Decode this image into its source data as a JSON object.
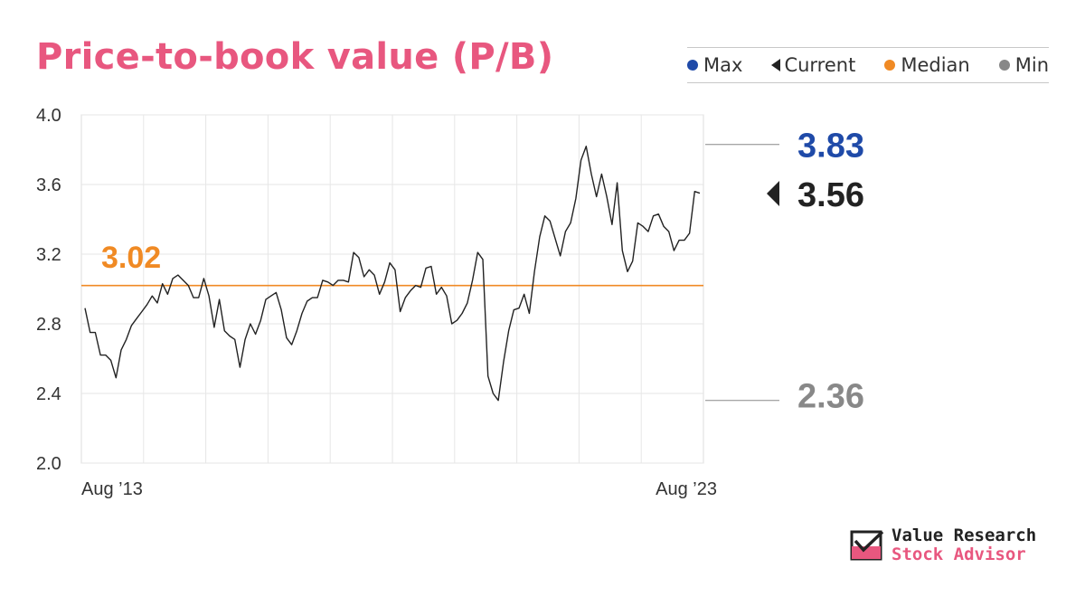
{
  "title": "Price-to-book value (P/B)",
  "legend": {
    "max": {
      "label": "Max",
      "color": "#1f4aa8"
    },
    "current": {
      "label": "Current",
      "color": "#222222"
    },
    "median": {
      "label": "Median",
      "color": "#f08a24"
    },
    "min": {
      "label": "Min",
      "color": "#888888"
    }
  },
  "chart_data": {
    "type": "line",
    "title": "Price-to-book value (P/B)",
    "ylim": [
      2.0,
      4.0
    ],
    "yticks": [
      4.0,
      3.6,
      3.2,
      2.8,
      2.4,
      2.0
    ],
    "ytick_labels": [
      "4.0",
      "3.6",
      "3.2",
      "2.8",
      "2.4",
      "2.0"
    ],
    "xtick_labels": [
      "Aug ’13",
      "Aug ’23"
    ],
    "grid": true,
    "series": [
      {
        "color": "#222222",
        "values": [
          2.89,
          2.75,
          2.75,
          2.62,
          2.62,
          2.59,
          2.49,
          2.65,
          2.71,
          2.79,
          2.83,
          2.87,
          2.91,
          2.96,
          2.92,
          3.03,
          2.97,
          3.06,
          3.08,
          3.05,
          3.02,
          2.95,
          2.95,
          3.06,
          2.96,
          2.78,
          2.94,
          2.76,
          2.73,
          2.71,
          2.55,
          2.71,
          2.8,
          2.74,
          2.82,
          2.94,
          2.96,
          2.98,
          2.88,
          2.72,
          2.68,
          2.76,
          2.86,
          2.93,
          2.95,
          2.95,
          3.05,
          3.04,
          3.02,
          3.05,
          3.05,
          3.04,
          3.21,
          3.18,
          3.07,
          3.11,
          3.08,
          2.97,
          3.04,
          3.15,
          3.11,
          2.87,
          2.95,
          2.99,
          3.02,
          3.01,
          3.12,
          3.13,
          2.97,
          3.01,
          2.96,
          2.8,
          2.82,
          2.86,
          2.92,
          3.05,
          3.21,
          3.17,
          2.5,
          2.4,
          2.36,
          2.58,
          2.76,
          2.88,
          2.89,
          2.97,
          2.86,
          3.1,
          3.3,
          3.42,
          3.39,
          3.29,
          3.19,
          3.33,
          3.38,
          3.52,
          3.74,
          3.82,
          3.66,
          3.53,
          3.66,
          3.53,
          3.37,
          3.61,
          3.22,
          3.1,
          3.16,
          3.38,
          3.36,
          3.33,
          3.42,
          3.43,
          3.36,
          3.33,
          3.22,
          3.28,
          3.28,
          3.32,
          3.56,
          3.55
        ]
      }
    ],
    "median": {
      "value": 3.02,
      "label": "3.02"
    },
    "max": {
      "value": 3.83,
      "label": "3.83"
    },
    "current": {
      "value": 3.56,
      "label": "3.56"
    },
    "min": {
      "value": 2.36,
      "label": "2.36"
    }
  },
  "brand": {
    "line1": "Value Research",
    "line2": "Stock Advisor"
  }
}
